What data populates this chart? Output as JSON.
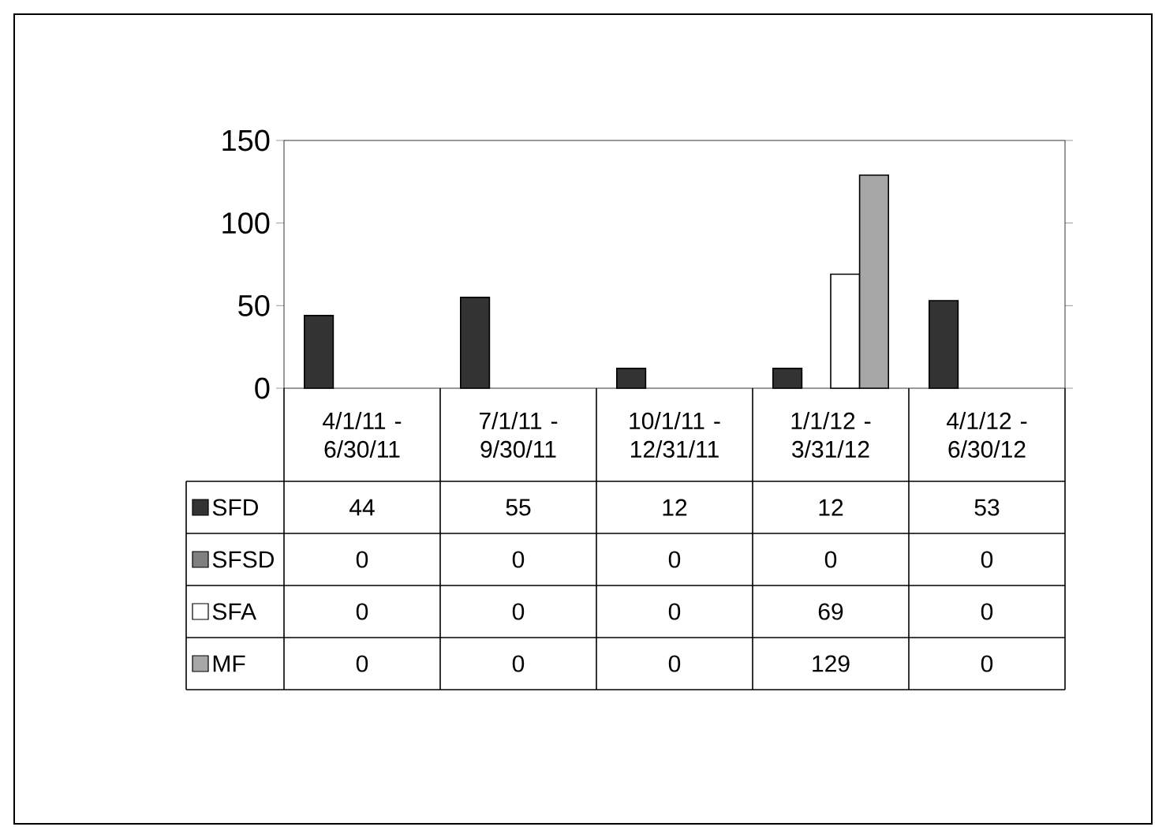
{
  "chart_data": {
    "type": "bar",
    "categories": [
      "4/1/11 - 6/30/11",
      "7/1/11 - 9/30/11",
      "10/1/11 - 12/31/11",
      "1/1/12 - 3/31/12",
      "4/1/12 - 6/30/12"
    ],
    "series": [
      {
        "name": "SFD",
        "color": "#333333",
        "values": [
          44,
          55,
          12,
          12,
          53
        ]
      },
      {
        "name": "SFSD",
        "color": "#808080",
        "values": [
          0,
          0,
          0,
          0,
          0
        ]
      },
      {
        "name": "SFA",
        "color": "#ffffff",
        "values": [
          0,
          0,
          0,
          69,
          0
        ]
      },
      {
        "name": "MF",
        "color": "#a6a6a6",
        "values": [
          0,
          0,
          0,
          129,
          0
        ]
      }
    ],
    "ylim": [
      0,
      150
    ],
    "yticks": [
      0,
      50,
      100,
      150
    ],
    "data_labels": true,
    "legend": "bottom left"
  }
}
